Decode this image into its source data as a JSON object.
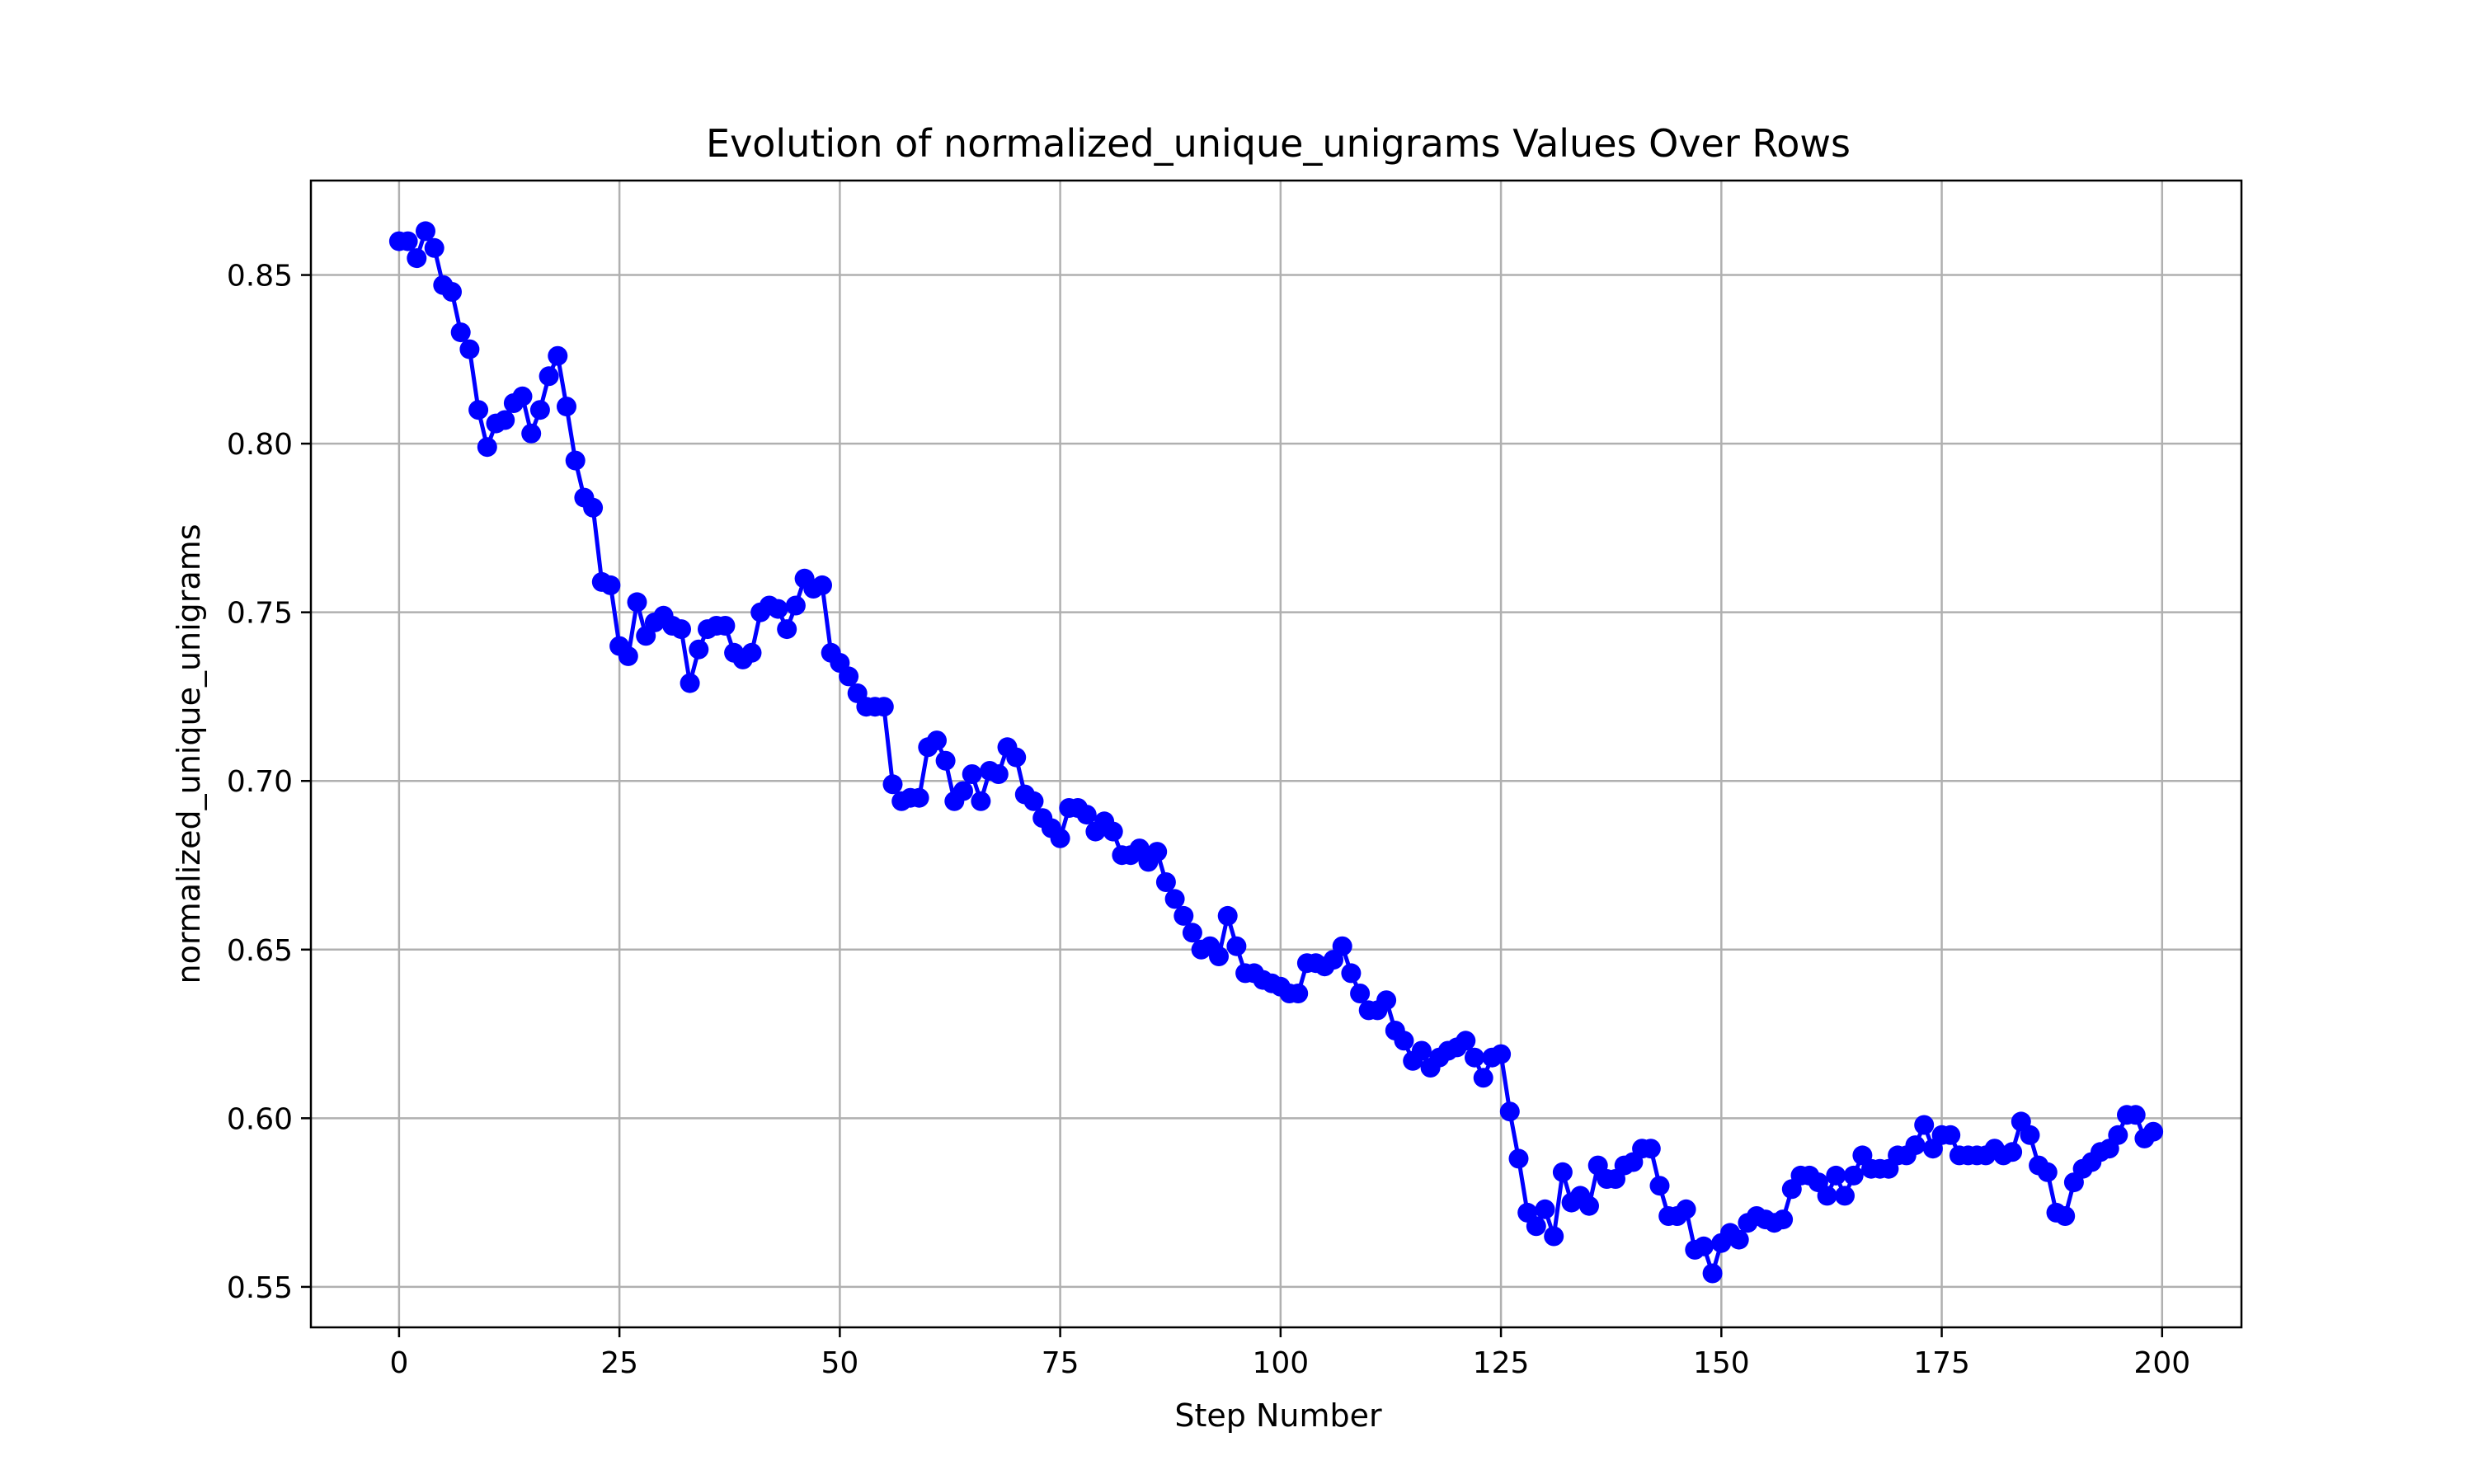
{
  "chart_data": {
    "type": "line",
    "title": "Evolution of normalized_unique_unigrams Values Over Rows",
    "xlabel": "Step Number",
    "ylabel": "normalized_unique_unigrams",
    "xlim": [
      -10,
      209
    ],
    "ylim": [
      0.538,
      0.878
    ],
    "xticks": [
      0,
      25,
      50,
      75,
      100,
      125,
      150,
      175,
      200
    ],
    "yticks": [
      0.55,
      0.6,
      0.65,
      0.7,
      0.75,
      0.8,
      0.85
    ],
    "ytick_labels": [
      "0.55",
      "0.60",
      "0.65",
      "0.70",
      "0.75",
      "0.80",
      "0.85"
    ],
    "grid": true,
    "marker": "circle",
    "series": [
      {
        "color": "#0000ff",
        "x": [
          0,
          1,
          2,
          3,
          4,
          5,
          6,
          7,
          8,
          9,
          10,
          11,
          12,
          13,
          14,
          15,
          16,
          17,
          18,
          19,
          20,
          21,
          22,
          23,
          24,
          25,
          26,
          27,
          28,
          29,
          30,
          31,
          32,
          33,
          34,
          35,
          36,
          37,
          38,
          39,
          40,
          41,
          42,
          43,
          44,
          45,
          46,
          47,
          48,
          49,
          50,
          51,
          52,
          53,
          54,
          55,
          56,
          57,
          58,
          59,
          60,
          61,
          62,
          63,
          64,
          65,
          66,
          67,
          68,
          69,
          70,
          71,
          72,
          73,
          74,
          75,
          76,
          77,
          78,
          79,
          80,
          81,
          82,
          83,
          84,
          85,
          86,
          87,
          88,
          89,
          90,
          91,
          92,
          93,
          94,
          95,
          96,
          97,
          98,
          99,
          100,
          101,
          102,
          103,
          104,
          105,
          106,
          107,
          108,
          109,
          110,
          111,
          112,
          113,
          114,
          115,
          116,
          117,
          118,
          119,
          120,
          121,
          122,
          123,
          124,
          125,
          126,
          127,
          128,
          129,
          130,
          131,
          132,
          133,
          134,
          135,
          136,
          137,
          138,
          139,
          140,
          141,
          142,
          143,
          144,
          145,
          146,
          147,
          148,
          149,
          150,
          151,
          152,
          153,
          154,
          155,
          156,
          157,
          158,
          159,
          160,
          161,
          162,
          163,
          164,
          165,
          166,
          167,
          168,
          169,
          170,
          171,
          172,
          173,
          174,
          175,
          176,
          177,
          178,
          179,
          180,
          181,
          182,
          183,
          184,
          185,
          186,
          187,
          188,
          189,
          190,
          191,
          192,
          193,
          194,
          195,
          196,
          197,
          198,
          199
        ],
        "y": [
          0.86,
          0.86,
          0.855,
          0.863,
          0.858,
          0.847,
          0.845,
          0.833,
          0.828,
          0.81,
          0.799,
          0.806,
          0.807,
          0.812,
          0.814,
          0.803,
          0.81,
          0.82,
          0.826,
          0.811,
          0.795,
          0.784,
          0.781,
          0.759,
          0.758,
          0.74,
          0.737,
          0.753,
          0.743,
          0.747,
          0.749,
          0.746,
          0.745,
          0.729,
          0.739,
          0.745,
          0.746,
          0.746,
          0.738,
          0.736,
          0.738,
          0.75,
          0.752,
          0.751,
          0.745,
          0.752,
          0.76,
          0.757,
          0.758,
          0.738,
          0.735,
          0.731,
          0.726,
          0.722,
          0.722,
          0.722,
          0.699,
          0.694,
          0.695,
          0.695,
          0.71,
          0.712,
          0.706,
          0.694,
          0.697,
          0.702,
          0.694,
          0.703,
          0.702,
          0.71,
          0.707,
          0.696,
          0.694,
          0.689,
          0.686,
          0.683,
          0.692,
          0.692,
          0.69,
          0.685,
          0.688,
          0.685,
          0.678,
          0.678,
          0.68,
          0.676,
          0.679,
          0.67,
          0.665,
          0.66,
          0.655,
          0.65,
          0.651,
          0.648,
          0.66,
          0.651,
          0.643,
          0.643,
          0.641,
          0.64,
          0.639,
          0.637,
          0.637,
          0.646,
          0.646,
          0.645,
          0.647,
          0.651,
          0.643,
          0.637,
          0.632,
          0.632,
          0.635,
          0.626,
          0.623,
          0.617,
          0.62,
          0.615,
          0.618,
          0.62,
          0.621,
          0.623,
          0.618,
          0.612,
          0.618,
          0.619,
          0.602,
          0.588,
          0.572,
          0.568,
          0.573,
          0.565,
          0.584,
          0.575,
          0.577,
          0.574,
          0.586,
          0.582,
          0.582,
          0.586,
          0.587,
          0.591,
          0.591,
          0.58,
          0.571,
          0.571,
          0.573,
          0.561,
          0.562,
          0.554,
          0.563,
          0.566,
          0.564,
          0.569,
          0.571,
          0.57,
          0.569,
          0.57,
          0.579,
          0.583,
          0.583,
          0.581,
          0.577,
          0.583,
          0.577,
          0.583,
          0.589,
          0.585,
          0.585,
          0.585,
          0.589,
          0.589,
          0.592,
          0.598,
          0.591,
          0.595,
          0.595,
          0.589,
          0.589,
          0.589,
          0.589,
          0.591,
          0.589,
          0.59,
          0.599,
          0.595,
          0.586,
          0.584,
          0.572,
          0.571,
          0.581,
          0.585,
          0.587,
          0.59,
          0.591,
          0.595,
          0.601,
          0.601,
          0.594,
          0.596
        ]
      }
    ]
  }
}
